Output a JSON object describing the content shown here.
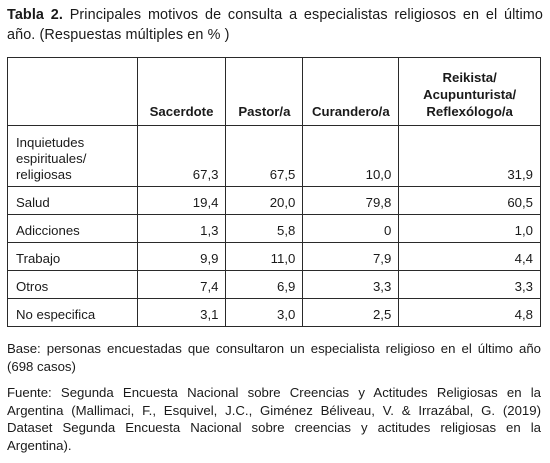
{
  "caption": {
    "label": "Tabla 2.",
    "text": "Principales motivos de consulta a especialistas religiosos en el último año. (Respuestas múltiples en % )"
  },
  "table": {
    "headers": [
      "",
      "Sacerdote",
      "Pastor/a",
      "Curandero/a",
      "Reikista/\nAcupunturista/\nReflexólogo/a"
    ],
    "rows": [
      {
        "category": "Inquietudes\nespirituales/\nreligiosas",
        "values": [
          "67,3",
          "67,5",
          "10,0",
          "31,9"
        ]
      },
      {
        "category": "Salud",
        "values": [
          "19,4",
          "20,0",
          "79,8",
          "60,5"
        ]
      },
      {
        "category": "Adicciones",
        "values": [
          "1,3",
          "5,8",
          "0",
          "1,0"
        ]
      },
      {
        "category": "Trabajo",
        "values": [
          "9,9",
          "11,0",
          "7,9",
          "4,4"
        ]
      },
      {
        "category": "Otros",
        "values": [
          "7,4",
          "6,9",
          "3,3",
          "3,3"
        ]
      },
      {
        "category": "No especifica",
        "values": [
          "3,1",
          "3,0",
          "2,5",
          "4,8"
        ]
      }
    ]
  },
  "notes": {
    "base": "Base: personas encuestadas que consultaron un especialista religioso en el último año (698 casos)",
    "source": "Fuente: Segunda Encuesta Nacional sobre Creencias y Actitudes Religiosas en la Argentina (Mallimaci, F., Esquivel, J.C., Giménez Béliveau, V. & Irrazábal, G. (2019) Dataset Segunda Encuesta Nacional sobre creencias y actitudes religiosas en la Argentina)."
  }
}
